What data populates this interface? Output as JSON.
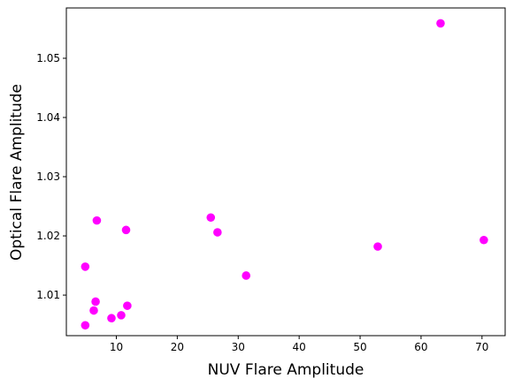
{
  "chart_data": {
    "type": "scatter",
    "xlabel": "NUV Flare Amplitude",
    "ylabel": "Optical Flare Amplitude",
    "xlim": [
      1.8,
      73.8
    ],
    "ylim": [
      1.00315,
      1.0585
    ],
    "xticks": [
      10,
      20,
      30,
      40,
      50,
      60,
      70
    ],
    "yticks": [
      1.01,
      1.02,
      1.03,
      1.04,
      1.05
    ],
    "xtick_labels": [
      "10",
      "20",
      "30",
      "40",
      "50",
      "60",
      "70"
    ],
    "ytick_labels": [
      "1.01",
      "1.02",
      "1.03",
      "1.04",
      "1.05"
    ],
    "grid": false,
    "marker_color": "#ff00ff",
    "series": [
      {
        "x": [
          4.9,
          4.9,
          6.3,
          6.6,
          6.8,
          9.2,
          10.8,
          11.6,
          11.8,
          25.5,
          26.6,
          31.3,
          52.9,
          63.2,
          70.3
        ],
        "y": [
          1.0049,
          1.0148,
          1.0074,
          1.0089,
          1.0226,
          1.0061,
          1.0066,
          1.021,
          1.0082,
          1.0231,
          1.0206,
          1.0133,
          1.0182,
          1.0559,
          1.0193
        ]
      }
    ]
  }
}
